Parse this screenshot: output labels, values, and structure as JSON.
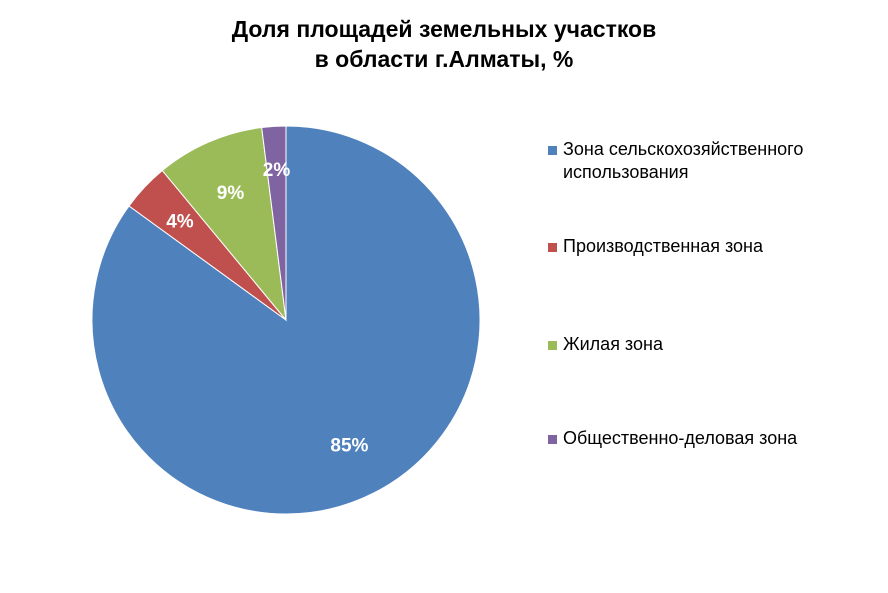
{
  "chart_data": {
    "type": "pie",
    "title": "Доля площадей земельных участков",
    "subtitle": "в области г.Алматы, %",
    "categories": [
      "Зона сельскохозяйственного использования",
      "Производственная зона",
      "Жилая зона",
      "Общественно-деловая зона"
    ],
    "values": [
      85,
      4,
      9,
      2
    ],
    "data_labels": [
      "85%",
      "4%",
      "9%",
      "2%"
    ],
    "colors": [
      "#4F81BD",
      "#C0504D",
      "#9BBB59",
      "#8064A2"
    ],
    "legend_placement": "right"
  }
}
